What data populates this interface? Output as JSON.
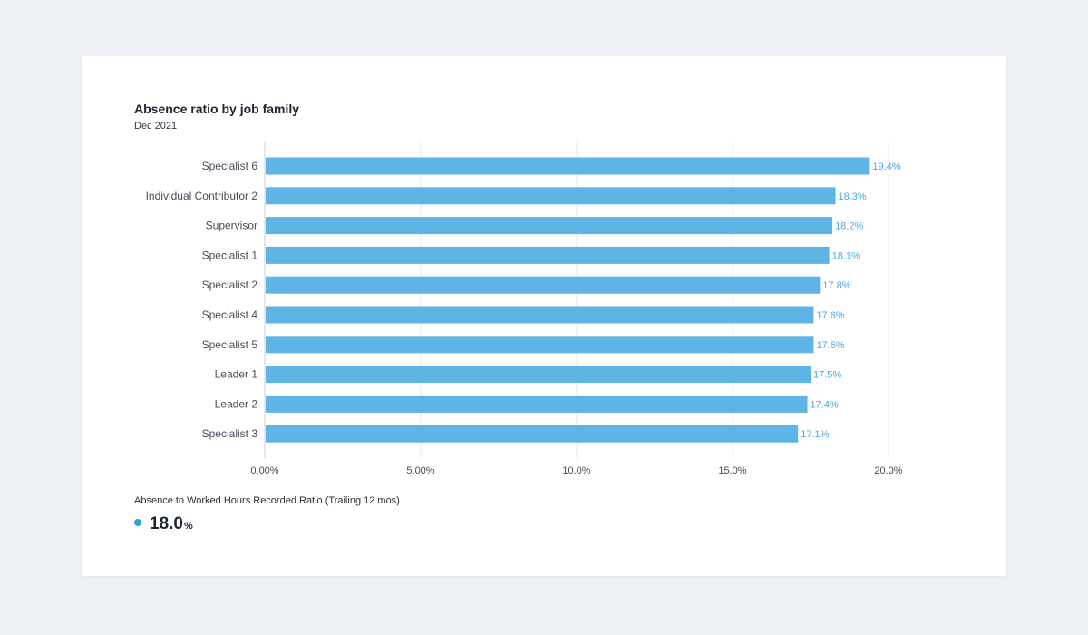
{
  "colors": {
    "bar": "#5eb4e5",
    "value_label": "#4aa9e0",
    "grid": "#e4e7ec",
    "axis": "#c8ccd3",
    "kpi_dot": "#2aa3e0"
  },
  "chart_data": {
    "type": "bar",
    "orientation": "horizontal",
    "title": "Absence ratio by job family",
    "subtitle": "Dec 2021",
    "categories": [
      "Specialist 6",
      "Individual Contributor 2",
      "Supervisor",
      "Specialist 1",
      "Specialist 2",
      "Specialist 4",
      "Specialist 5",
      "Leader 1",
      "Leader 2",
      "Specialist 3"
    ],
    "values": [
      19.4,
      18.3,
      18.2,
      18.1,
      17.8,
      17.6,
      17.6,
      17.5,
      17.4,
      17.1
    ],
    "value_labels": [
      "19.4%",
      "18.3%",
      "18.2%",
      "18.1%",
      "17.8%",
      "17.6%",
      "17.6%",
      "17.5%",
      "17.4%",
      "17.1%"
    ],
    "x_ticks": [
      0,
      5,
      10,
      15,
      20
    ],
    "x_tick_labels": [
      "0.00%",
      "5.00%",
      "10.0%",
      "15.0%",
      "20.0%"
    ],
    "xlim": [
      0,
      20
    ],
    "grid": true
  },
  "kpi": {
    "label": "Absence to Worked Hours Recorded Ratio (Trailing 12 mos)",
    "value": "18.0",
    "unit": "%"
  }
}
